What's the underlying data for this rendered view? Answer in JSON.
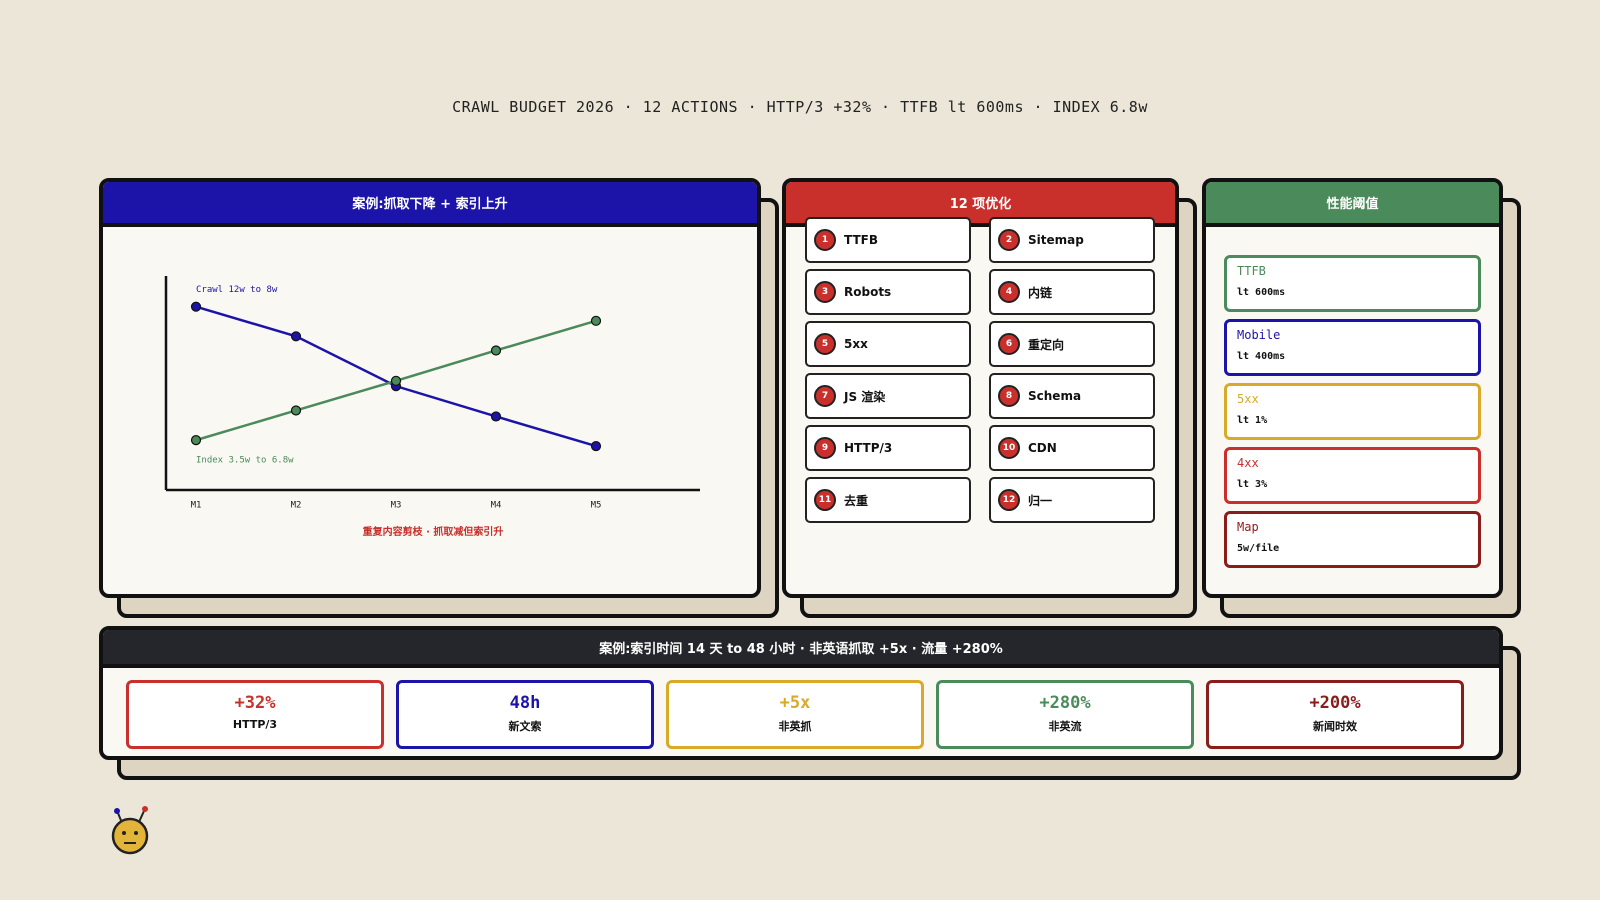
{
  "header": {
    "title": "CRAWL BUDGET 2026 · 12 ACTIONS · HTTP/3 +32% · TTFB lt 600ms · INDEX 6.8w"
  },
  "case_panel": {
    "title": "案例:抓取下降 + 索引上升",
    "chart_data": {
      "type": "line",
      "categories": [
        "M1",
        "M2",
        "M3",
        "M4",
        "M5"
      ],
      "series": [
        {
          "name": "Crawl 12w to 8w",
          "color": "#1c14a8",
          "values": [
            12,
            11.15,
            9.72,
            8.85,
            8
          ]
        },
        {
          "name": "Index 3.5w to 6.8w",
          "color": "#4b8a5a",
          "values": [
            3.5,
            4.32,
            5.14,
            5.98,
            6.8
          ],
          "axis": "y2"
        }
      ],
      "ylim": [
        6.74,
        12.88
      ],
      "y2lim": [
        2.12,
        8.04
      ],
      "annotation": "重复内容剪枝 · 抓取减但索引升"
    }
  },
  "actions_panel": {
    "title": "12 项优化",
    "items": [
      {
        "number": 1,
        "label": "TTFB"
      },
      {
        "number": 2,
        "label": "Sitemap"
      },
      {
        "number": 3,
        "label": "Robots"
      },
      {
        "number": 4,
        "label": "内链"
      },
      {
        "number": 5,
        "label": "5xx"
      },
      {
        "number": 6,
        "label": "重定向"
      },
      {
        "number": 7,
        "label": "JS 渲染"
      },
      {
        "number": 8,
        "label": "Schema"
      },
      {
        "number": 9,
        "label": "HTTP/3"
      },
      {
        "number": 10,
        "label": "CDN"
      },
      {
        "number": 11,
        "label": "去重"
      },
      {
        "number": 12,
        "label": "归一"
      }
    ]
  },
  "thresholds_panel": {
    "title": "性能阈值",
    "items": [
      {
        "name": "TTFB",
        "value": "lt 600ms",
        "color": "#4b8a5a"
      },
      {
        "name": "Mobile",
        "value": "lt 400ms",
        "color": "#1c14a8"
      },
      {
        "name": "5xx",
        "value": "lt 1%",
        "color": "#d9a92a"
      },
      {
        "name": "4xx",
        "value": "lt 3%",
        "color": "#c9302c"
      },
      {
        "name": "Map",
        "value": "5w/file",
        "color": "#8b1c1c"
      }
    ]
  },
  "results_panel": {
    "title": "案例:索引时间 14 天 to 48 小时 · 非英语抓取 +5x · 流量 +280%",
    "items": [
      {
        "value": "+32%",
        "label": "HTTP/3",
        "color": "#c9302c"
      },
      {
        "value": "48h",
        "label": "新文索",
        "color": "#1c14a8"
      },
      {
        "value": "+5x",
        "label": "非英抓",
        "color": "#d9a92a"
      },
      {
        "value": "+280%",
        "label": "非英流",
        "color": "#4b8a5a"
      },
      {
        "value": "+200%",
        "label": "新闻时效",
        "color": "#8b1c1c"
      }
    ]
  }
}
